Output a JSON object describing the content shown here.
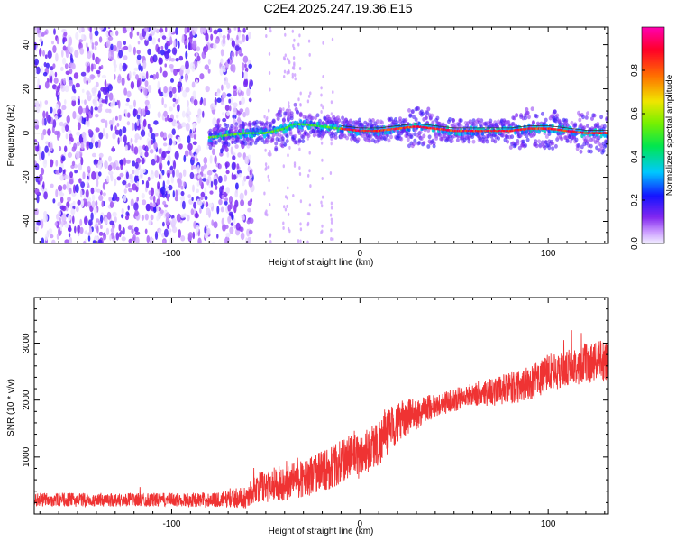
{
  "title": "C2E4.2025.247.19.36.E15",
  "chart_data": [
    {
      "type": "heatmap",
      "xlabel": "Height of straight line (km)",
      "ylabel": "Frequency (Hz)",
      "xlim": [
        -173,
        132
      ],
      "ylim": [
        -50,
        48
      ],
      "x_ticks": [
        -100,
        0,
        100
      ],
      "y_ticks": [
        -40,
        -20,
        0,
        20,
        40
      ],
      "grid": false,
      "noise_region_x": [
        -173,
        -57
      ],
      "signal_track": {
        "x": [
          -80,
          -70,
          -60,
          -50,
          -40,
          -35,
          -30,
          -20,
          -10,
          0,
          10,
          20,
          30,
          40,
          50,
          60,
          70,
          80,
          90,
          100,
          110,
          120,
          132
        ],
        "y": [
          -2,
          -1,
          0,
          0,
          2,
          4,
          4,
          3,
          2,
          1,
          1,
          2,
          3,
          2,
          1,
          1,
          1,
          1,
          2,
          2,
          1,
          0,
          0
        ]
      },
      "colorbar": {
        "label": "Normalized spectral amplitude",
        "range": [
          0,
          1
        ],
        "ticks": [
          0,
          0.2,
          0.4,
          0.6,
          0.8
        ],
        "tick_labels": [
          "0.0",
          "0.2",
          "0.4",
          "0.6",
          "0.8"
        ]
      }
    },
    {
      "type": "line",
      "xlabel": "Height of straight line (km)",
      "ylabel": "SNR (10 * v/v)",
      "xlim": [
        -173,
        132
      ],
      "ylim": [
        0,
        3800
      ],
      "x_ticks": [
        -100,
        0,
        100
      ],
      "y_ticks": [
        1000,
        2000,
        3000
      ],
      "grid": false,
      "series": [
        {
          "color": "#ef3333",
          "x": [
            -173,
            -150,
            -125,
            -100,
            -75,
            -60,
            -55,
            -50,
            -45,
            -40,
            -35,
            -30,
            -25,
            -20,
            -15,
            -10,
            -5,
            0,
            5,
            10,
            15,
            20,
            25,
            30,
            35,
            40,
            50,
            60,
            70,
            80,
            90,
            95,
            100,
            105,
            110,
            120,
            132
          ],
          "y": [
            250,
            250,
            250,
            250,
            250,
            300,
            450,
            500,
            550,
            520,
            620,
            600,
            700,
            750,
            820,
            900,
            1050,
            1000,
            1150,
            1250,
            1450,
            1600,
            1700,
            1750,
            1850,
            1900,
            2000,
            2100,
            2150,
            2200,
            2300,
            2350,
            2500,
            2500,
            2550,
            2650,
            2700
          ],
          "noise": [
            120,
            120,
            120,
            120,
            130,
            200,
            250,
            300,
            300,
            300,
            320,
            330,
            350,
            380,
            380,
            400,
            380,
            400,
            400,
            420,
            420,
            350,
            330,
            280,
            250,
            200,
            200,
            220,
            250,
            280,
            300,
            320,
            350,
            300,
            320,
            350,
            380
          ]
        }
      ]
    }
  ]
}
